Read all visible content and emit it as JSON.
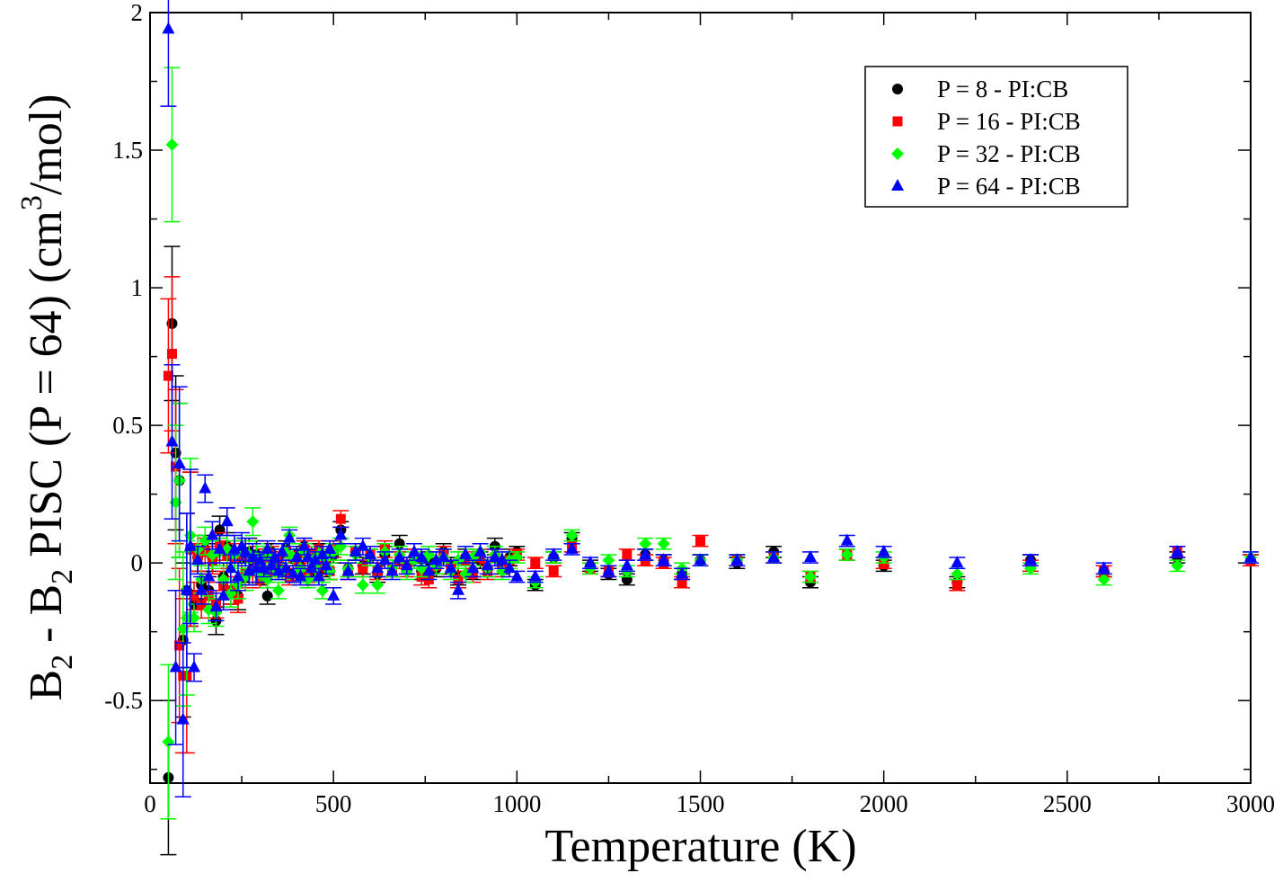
{
  "chart_data": {
    "type": "scatter",
    "title": "",
    "xlabel": "Temperature (K)",
    "ylabel": {
      "parts": [
        "B",
        "2",
        " - B",
        "2",
        " PISC (P = 64) (cm",
        "3",
        "/mol)"
      ]
    },
    "xlim": [
      0,
      3000
    ],
    "ylim": [
      -0.8,
      2.0
    ],
    "xticks": [
      "0",
      "500",
      "1000",
      "1500",
      "2000",
      "2500",
      "3000"
    ],
    "xtick_values": [
      0,
      500,
      1000,
      1500,
      2000,
      2500,
      3000
    ],
    "yticks": [
      "-0.5",
      "0",
      "0.5",
      "1",
      "1.5",
      "2"
    ],
    "ytick_values": [
      -0.5,
      0,
      0.5,
      1,
      1.5,
      2
    ],
    "grid": false,
    "legend_position": "top-right",
    "x": [
      50,
      60,
      70,
      80,
      90,
      100,
      110,
      120,
      130,
      140,
      150,
      160,
      170,
      180,
      190,
      200,
      210,
      220,
      230,
      240,
      250,
      260,
      270,
      280,
      290,
      300,
      310,
      320,
      330,
      340,
      350,
      360,
      370,
      380,
      390,
      400,
      410,
      420,
      430,
      440,
      450,
      460,
      470,
      480,
      490,
      500,
      520,
      540,
      560,
      580,
      600,
      620,
      640,
      660,
      680,
      700,
      720,
      740,
      760,
      780,
      800,
      820,
      840,
      860,
      880,
      900,
      920,
      940,
      960,
      980,
      1000,
      1050,
      1100,
      1150,
      1200,
      1250,
      1300,
      1350,
      1400,
      1450,
      1500,
      1600,
      1700,
      1800,
      1900,
      2000,
      2200,
      2400,
      2600,
      2800,
      3000
    ],
    "series": [
      {
        "name": "P = 8 - PI:CB",
        "color": "#000000",
        "marker": "circle",
        "values": [
          -0.78,
          0.87,
          0.4,
          0.3,
          -0.28,
          -0.1,
          0.05,
          -0.15,
          0.02,
          -0.08,
          0.05,
          -0.1,
          0.02,
          -0.21,
          0.12,
          -0.05,
          0.06,
          -0.1,
          0.03,
          -0.12,
          0.02,
          -0.05,
          0.04,
          -0.02,
          0.03,
          -0.05,
          0.02,
          -0.12,
          0.04,
          -0.02,
          0.01,
          -0.03,
          0.05,
          -0.04,
          0.02,
          0.03,
          -0.01,
          0.06,
          -0.05,
          0.02,
          -0.03,
          0.04,
          -0.02,
          0.01,
          -0.03,
          0.03,
          0.12,
          -0.02,
          0.04,
          -0.01,
          0.02,
          -0.04,
          0.03,
          -0.02,
          0.07,
          -0.01,
          0.02,
          -0.03,
          0.01,
          -0.02,
          0.04,
          -0.01,
          -0.05,
          0.02,
          -0.03,
          0.01,
          -0.02,
          0.06,
          -0.01,
          0.02,
          0.04,
          -0.08,
          0.02,
          0.09,
          -0.01,
          -0.04,
          -0.06,
          0.03,
          0.01,
          -0.04,
          0.01,
          0.0,
          0.04,
          -0.07,
          0.03,
          -0.01,
          -0.07,
          0.01,
          -0.03,
          0.02,
          0.01
        ]
      },
      {
        "name": "P = 16 - PI:CB",
        "color": "#ff0000",
        "marker": "square",
        "values": [
          0.68,
          0.76,
          0.35,
          -0.3,
          -0.41,
          -0.41,
          0.05,
          -0.12,
          0.02,
          -0.15,
          0.04,
          -0.12,
          0.01,
          -0.15,
          0.06,
          -0.08,
          0.03,
          -0.1,
          0.02,
          -0.13,
          0.03,
          -0.04,
          0.02,
          -0.03,
          0.01,
          -0.06,
          0.02,
          -0.04,
          0.03,
          -0.02,
          0.01,
          -0.03,
          0.04,
          -0.05,
          0.02,
          0.01,
          -0.02,
          0.05,
          -0.04,
          0.03,
          -0.02,
          0.05,
          -0.01,
          0.02,
          -0.03,
          0.05,
          0.16,
          -0.03,
          0.04,
          -0.02,
          0.03,
          -0.03,
          0.05,
          -0.02,
          0.01,
          -0.02,
          0.02,
          -0.05,
          -0.06,
          -0.01,
          0.03,
          -0.02,
          -0.06,
          0.01,
          -0.04,
          0.02,
          -0.03,
          0.02,
          -0.02,
          0.01,
          0.03,
          0.0,
          -0.03,
          0.06,
          -0.02,
          -0.03,
          0.03,
          0.01,
          0.0,
          -0.07,
          0.08,
          0.01,
          0.02,
          -0.05,
          0.03,
          0.0,
          -0.08,
          -0.01,
          -0.03,
          0.04,
          0.01
        ]
      },
      {
        "name": "P = 32 - PI:CB",
        "color": "#00ff00",
        "marker": "diamond",
        "values": [
          -0.65,
          1.52,
          0.22,
          0.3,
          -0.24,
          -0.2,
          0.1,
          -0.2,
          0.05,
          -0.06,
          0.08,
          -0.17,
          0.03,
          -0.18,
          0.04,
          -0.06,
          0.05,
          -0.11,
          0.03,
          -0.08,
          0.04,
          -0.05,
          0.03,
          0.15,
          0.02,
          -0.04,
          0.03,
          -0.06,
          0.02,
          -0.02,
          -0.1,
          -0.03,
          0.04,
          0.1,
          0.02,
          -0.04,
          -0.02,
          0.04,
          -0.06,
          0.01,
          -0.02,
          0.03,
          -0.1,
          0.02,
          -0.03,
          0.04,
          0.06,
          -0.02,
          0.03,
          -0.08,
          0.02,
          -0.08,
          0.04,
          -0.02,
          0.03,
          -0.03,
          0.01,
          -0.02,
          0.03,
          -0.01,
          0.02,
          -0.03,
          0.01,
          -0.04,
          0.02,
          0.04,
          -0.02,
          0.03,
          -0.03,
          0.01,
          0.02,
          -0.07,
          0.02,
          0.1,
          -0.02,
          0.01,
          -0.03,
          0.07,
          0.07,
          -0.02,
          0.01,
          0.01,
          0.02,
          -0.05,
          0.03,
          0.02,
          -0.04,
          -0.02,
          -0.06,
          -0.01,
          0.02
        ]
      },
      {
        "name": "P = 64 - PI:CB",
        "color": "#0000ff",
        "marker": "triangle",
        "values": [
          1.94,
          0.44,
          -0.38,
          0.36,
          -0.57,
          -0.1,
          0.06,
          -0.38,
          0.01,
          -0.1,
          0.27,
          -0.05,
          0.1,
          -0.16,
          0.05,
          -0.12,
          0.15,
          -0.02,
          0.05,
          -0.05,
          0.06,
          0.04,
          -0.03,
          0.02,
          -0.02,
          0.01,
          -0.02,
          0.05,
          -0.01,
          0.02,
          -0.03,
          0.04,
          -0.02,
          0.09,
          -0.04,
          0.02,
          -0.05,
          0.06,
          0.02,
          -0.02,
          0.01,
          -0.05,
          0.03,
          -0.01,
          0.05,
          -0.12,
          0.1,
          -0.03,
          0.04,
          0.06,
          0.03,
          -0.02,
          0.01,
          -0.03,
          0.02,
          -0.01,
          0.04,
          0.02,
          -0.03,
          0.01,
          0.02,
          -0.02,
          -0.1,
          0.03,
          -0.02,
          0.04,
          -0.01,
          0.02,
          0.01,
          -0.02,
          -0.05,
          -0.05,
          0.03,
          0.05,
          0.0,
          -0.03,
          -0.01,
          0.03,
          0.01,
          -0.04,
          0.01,
          0.01,
          0.02,
          0.02,
          0.08,
          0.04,
          0.0,
          0.01,
          -0.02,
          0.04,
          0.02
        ]
      }
    ]
  }
}
